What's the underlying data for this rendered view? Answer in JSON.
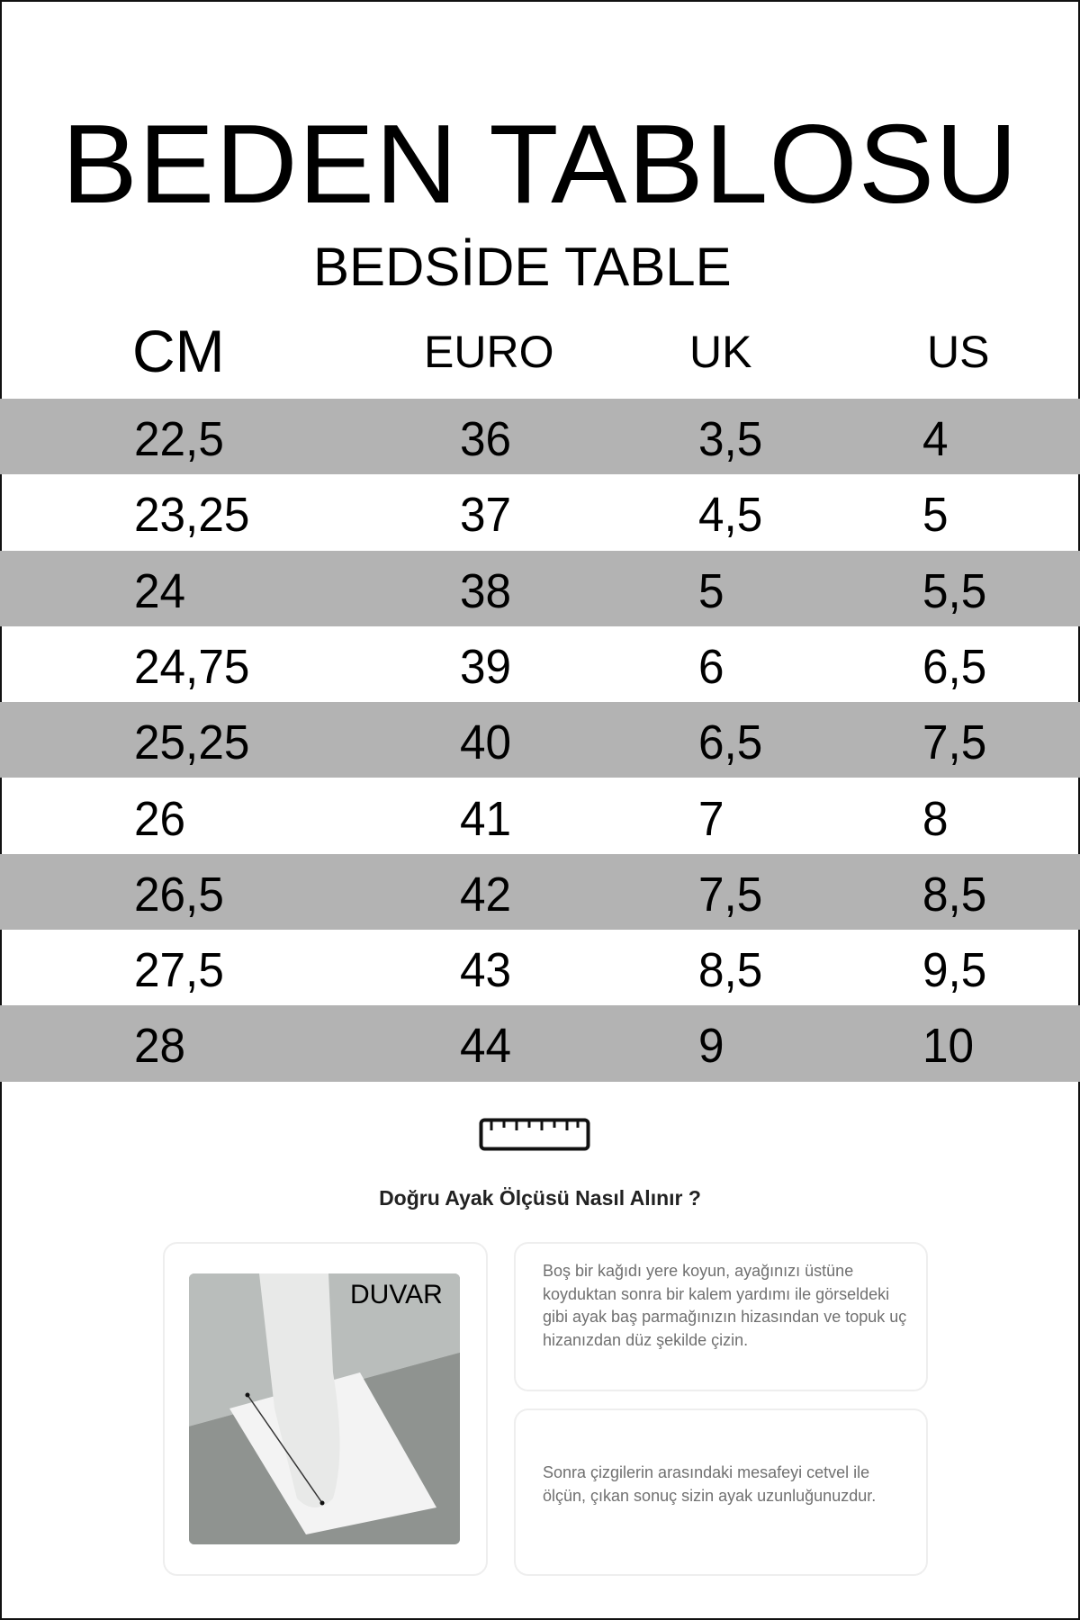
{
  "title": "BEDEN TABLOSU",
  "subtitle": "BEDSİDE TABLE",
  "table": {
    "headers": [
      "CM",
      "EURO",
      "UK",
      "US"
    ],
    "rows": [
      [
        "22,5",
        "36",
        "3,5",
        "4"
      ],
      [
        "23,25",
        "37",
        "4,5",
        "5"
      ],
      [
        "24",
        "38",
        "5",
        "5,5"
      ],
      [
        "24,75",
        "39",
        "6",
        "6,5"
      ],
      [
        "25,25",
        "40",
        "6,5",
        "7,5"
      ],
      [
        "26",
        "41",
        "7",
        "8"
      ],
      [
        "26,5",
        "42",
        "7,5",
        "8,5"
      ],
      [
        "27,5",
        "43",
        "8,5",
        "9,5"
      ],
      [
        "28",
        "44",
        "9",
        "10"
      ]
    ],
    "stripe_color": "#b3b3b3"
  },
  "guide": {
    "icon": "ruler-icon",
    "heading": "Doğru Ayak Ölçüsü Nasıl Alınır ?",
    "image_label": "DUVAR",
    "step1": "Boş bir kağıdı yere koyun, ayağınızı üstüne koyduktan sonra bir kalem yardımı ile görseldeki gibi ayak baş parmağınızın hizasından ve topuk uç hizanızdan düz şekilde çizin.",
    "step2": "Sonra çizgilerin arasındaki mesafeyi cetvel ile ölçün, çıkan sonuç sizin ayak uzunluğunuzdur."
  }
}
